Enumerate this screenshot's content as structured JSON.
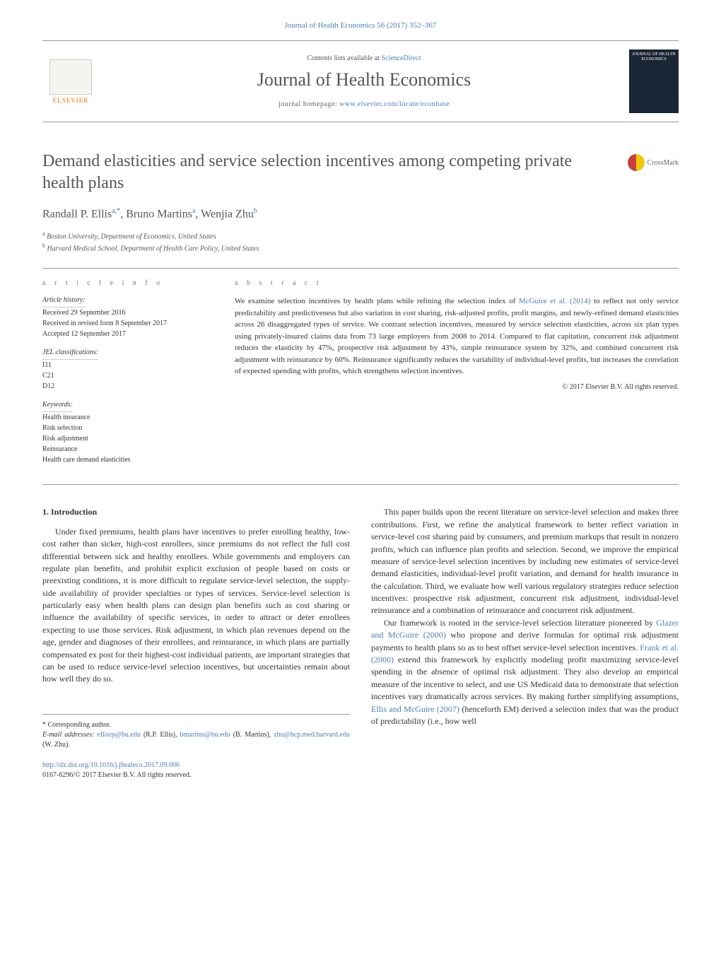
{
  "header": {
    "citation": "Journal of Health Economics 56 (2017) 352–367",
    "contents_prefix": "Contents lists available at ",
    "contents_link": "ScienceDirect",
    "journal_name": "Journal of Health Economics",
    "homepage_prefix": "journal homepage: ",
    "homepage_url": "www.elsevier.com/locate/econbase",
    "elsevier_label": "ELSEVIER",
    "cover_text": "JOURNAL OF HEALTH ECONOMICS"
  },
  "crossmark": "CrossMark",
  "title": "Demand elasticities and service selection incentives among competing private health plans",
  "authors": {
    "a1_name": "Randall P. Ellis",
    "a1_sup": "a,*",
    "a2_name": "Bruno Martins",
    "a2_sup": "a",
    "a3_name": "Wenjia Zhu",
    "a3_sup": "b"
  },
  "affiliations": {
    "a_sup": "a",
    "a_text": "Boston University, Department of Economics, United States",
    "b_sup": "b",
    "b_text": "Harvard Medical School, Department of Health Care Policy, United States"
  },
  "article_info": {
    "heading": "a r t i c l e   i n f o",
    "history_title": "Article history:",
    "received": "Received 29 September 2016",
    "revised": "Received in revised form 8 September 2017",
    "accepted": "Accepted 12 September 2017",
    "jel_title": "JEL classifications:",
    "jel1": "I11",
    "jel2": "C21",
    "jel3": "D12",
    "kw_title": "Keywords:",
    "kw1": "Health insurance",
    "kw2": "Risk selection",
    "kw3": "Risk adjustment",
    "kw4": "Reinsurance",
    "kw5": "Health care demand elasticities"
  },
  "abstract": {
    "heading": "a b s t r a c t",
    "text_part1": "We examine selection incentives by health plans while refining the selection index of ",
    "ref1": "McGuire et al. (2014)",
    "text_part2": " to reflect not only service predictability and predictiveness but also variation in cost sharing, risk-adjusted profits, profit margins, and newly-refined demand elasticities across 26 disaggregated types of service. We contrast selection incentives, measured by service selection elasticities, across six plan types using privately-insured claims data from 73 large employers from 2008 to 2014. Compared to flat capitation, concurrent risk adjustment reduces the elasticity by 47%, prospective risk adjustment by 43%, simple reinsurance system by 32%, and combined concurrent risk adjustment with reinsurance by 60%. Reinsurance significantly reduces the variability of individual-level profits, but increases the correlation of expected spending with profits, which strengthens selection incentives.",
    "copyright": "© 2017 Elsevier B.V. All rights reserved."
  },
  "body": {
    "section1_heading": "1.  Introduction",
    "col1_p1": "Under fixed premiums, health plans have incentives to prefer enrolling healthy, low-cost rather than sicker, high-cost enrollees, since premiums do not reflect the full cost differential between sick and healthy enrollees. While governments and employers can regulate plan benefits, and prohibit explicit exclusion of people based on costs or preexisting conditions, it is more difficult to regulate service-level selection, the supply-side availability of provider specialties or types of services. Service-level selection is particularly easy when health plans can design plan benefits such as cost sharing or influence the availability of specific services, in order to attract or deter enrollees expecting to use those services. Risk adjustment, in which plan revenues depend on the age, gender and diagnoses of their enrollees, and reinsurance, in which plans are partially compensated ex post for their highest-cost individual patients, are important strategies that can be used to reduce service-level selection incentives, but uncertainties remain about how well they do so.",
    "col2_p1": "This paper builds upon the recent literature on service-level selection and makes three contributions. First, we refine the analytical framework to better reflect variation in service-level cost sharing paid by consumers, and premium markups that result in nonzero profits, which can influence plan profits and selection. Second, we improve the empirical measure of service-level selection incentives by including new estimates of service-level demand elasticities, individual-level profit variation, and demand for health insurance in the calculation. Third, we evaluate how well various regulatory strategies reduce selection incentives: prospective risk adjustment, concurrent risk adjustment, individual-level reinsurance and a combination of reinsurance and concurrent risk adjustment.",
    "col2_p2a": "Our framework is rooted in the service-level selection literature pioneered by ",
    "col2_ref1": "Glazer and McGuire (2000)",
    "col2_p2b": " who propose and derive formulas for optimal risk adjustment payments to health plans so as to best offset service-level selection incentives. ",
    "col2_ref2": "Frank et al. (2000)",
    "col2_p2c": " extend this framework by explicitly modeling profit maximizing service-level spending in the absence of optimal risk adjustment. They also develop an empirical measure of the incentive to select, and use US Medicaid data to demonstrate that selection incentives vary dramatically across services. By making further simplifying assumptions, ",
    "col2_ref3": "Ellis and McGuire (2007)",
    "col2_p2d": " (henceforth EM) derived a selection index that was the product of predictability (i.e., how well"
  },
  "footer": {
    "corresp_label": "* Corresponding author.",
    "email_label": "E-mail addresses: ",
    "email1": "ellisrp@bu.edu",
    "email1_name": " (R.P. Ellis), ",
    "email2": "bmartins@bu.edu",
    "email2_name": " (B. Martins), ",
    "email3": "zhu@hcp.med.harvard.edu",
    "email3_name": " (W. Zhu).",
    "doi": "http://dx.doi.org/10.1016/j.jhealeco.2017.09.006",
    "issn_copyright": "0167-6296/© 2017 Elsevier B.V. All rights reserved."
  },
  "colors": {
    "link": "#4a7db8",
    "text": "#333333",
    "heading": "#555555",
    "orange": "#ff6600",
    "cover_bg": "#1a2535",
    "border": "#999999"
  }
}
